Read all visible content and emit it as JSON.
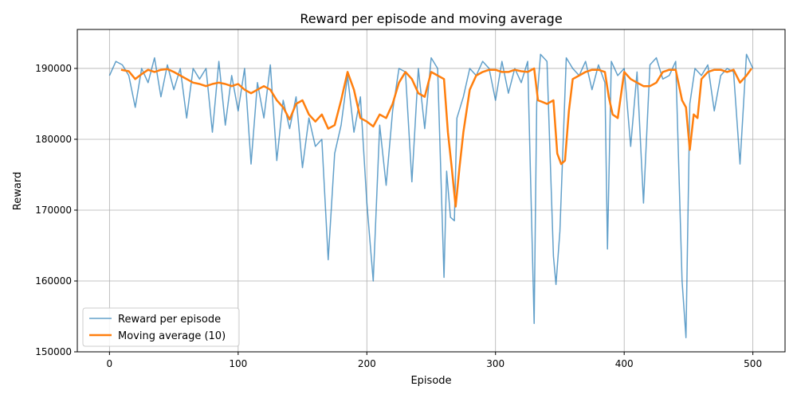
{
  "chart_data": {
    "type": "line",
    "title": "Reward per episode and moving average",
    "xlabel": "Episode",
    "ylabel": "Reward",
    "xlim": [
      -25,
      525
    ],
    "ylim": [
      150000,
      195500
    ],
    "xticks": [
      0,
      100,
      200,
      300,
      400,
      500
    ],
    "yticks": [
      150000,
      160000,
      170000,
      180000,
      190000
    ],
    "grid": true,
    "legend_position": "bottom-left",
    "series": [
      {
        "name": "Reward per episode",
        "color": "#1f77b4",
        "x": [
          0,
          5,
          10,
          15,
          20,
          25,
          30,
          35,
          40,
          45,
          50,
          55,
          60,
          65,
          70,
          75,
          80,
          85,
          90,
          95,
          100,
          105,
          110,
          115,
          120,
          125,
          130,
          135,
          140,
          145,
          150,
          155,
          160,
          165,
          170,
          175,
          180,
          185,
          190,
          195,
          200,
          205,
          210,
          215,
          220,
          225,
          230,
          235,
          240,
          245,
          250,
          255,
          260,
          262,
          265,
          268,
          270,
          275,
          280,
          285,
          290,
          295,
          300,
          305,
          310,
          315,
          320,
          325,
          330,
          332,
          335,
          340,
          345,
          347,
          350,
          355,
          360,
          365,
          370,
          375,
          380,
          385,
          387,
          390,
          395,
          400,
          405,
          410,
          415,
          420,
          425,
          430,
          435,
          440,
          445,
          448,
          451,
          455,
          460,
          465,
          470,
          475,
          480,
          485,
          490,
          495,
          500
        ],
        "y": [
          189000,
          191000,
          190500,
          189000,
          184500,
          190000,
          188000,
          191500,
          186000,
          190500,
          187000,
          190000,
          183000,
          190000,
          188500,
          190000,
          181000,
          191000,
          182000,
          189000,
          184000,
          190000,
          176500,
          188000,
          183000,
          190500,
          177000,
          185500,
          181500,
          186000,
          176000,
          183000,
          179000,
          180000,
          163000,
          178000,
          182000,
          189000,
          181000,
          186000,
          171000,
          160000,
          182000,
          173500,
          184000,
          190000,
          189500,
          174000,
          190000,
          181500,
          191500,
          190000,
          160500,
          175500,
          169000,
          168500,
          183000,
          186000,
          190000,
          189000,
          191000,
          190000,
          185500,
          191000,
          186500,
          190000,
          188000,
          191000,
          154000,
          185000,
          192000,
          191000,
          163500,
          159500,
          167000,
          191500,
          190000,
          189000,
          191000,
          187000,
          190500,
          188000,
          164500,
          191000,
          189000,
          190000,
          179000,
          189500,
          171000,
          190500,
          191500,
          188500,
          189000,
          191000,
          160000,
          152000,
          185000,
          190000,
          189000,
          190500,
          184000,
          189000,
          190000,
          189500,
          176500,
          192000,
          190000
        ]
      },
      {
        "name": "Moving average (10)",
        "color": "#ff7f0e",
        "x": [
          9,
          15,
          20,
          25,
          30,
          35,
          40,
          45,
          50,
          55,
          60,
          65,
          70,
          75,
          80,
          85,
          90,
          95,
          100,
          105,
          110,
          115,
          120,
          125,
          130,
          135,
          140,
          145,
          150,
          155,
          160,
          165,
          170,
          175,
          180,
          185,
          190,
          195,
          200,
          205,
          210,
          215,
          220,
          225,
          230,
          235,
          240,
          245,
          250,
          255,
          260,
          263,
          266,
          269,
          272,
          275,
          280,
          285,
          290,
          295,
          300,
          305,
          310,
          315,
          320,
          325,
          330,
          333,
          336,
          340,
          345,
          348,
          351,
          354,
          357,
          360,
          365,
          370,
          375,
          380,
          385,
          388,
          391,
          395,
          400,
          405,
          410,
          415,
          420,
          425,
          430,
          435,
          440,
          445,
          448,
          451,
          454,
          457,
          460,
          465,
          470,
          475,
          480,
          485,
          490,
          495,
          499
        ],
        "y": [
          189800,
          189600,
          188500,
          189200,
          189800,
          189500,
          189800,
          189900,
          189500,
          189000,
          188500,
          188000,
          187800,
          187500,
          187800,
          188000,
          187800,
          187500,
          187800,
          187000,
          186500,
          187000,
          187500,
          187000,
          185500,
          184500,
          182800,
          185000,
          185500,
          183500,
          182500,
          183500,
          181500,
          182000,
          185500,
          189500,
          187000,
          183000,
          182500,
          181800,
          183500,
          183000,
          185000,
          188000,
          189500,
          188500,
          186500,
          186000,
          189500,
          189000,
          188500,
          181000,
          176000,
          170500,
          176000,
          181000,
          187000,
          189000,
          189500,
          189800,
          189800,
          189500,
          189500,
          189800,
          189600,
          189500,
          190000,
          185500,
          185300,
          185000,
          185500,
          178000,
          176500,
          177000,
          184000,
          188500,
          189000,
          189500,
          189800,
          189800,
          189500,
          186000,
          183500,
          183000,
          189500,
          188500,
          188000,
          187500,
          187500,
          188000,
          189500,
          189800,
          189800,
          185500,
          184500,
          178500,
          183500,
          183000,
          188500,
          189500,
          189800,
          189800,
          189500,
          189800,
          188000,
          189000,
          190000
        ]
      }
    ]
  }
}
